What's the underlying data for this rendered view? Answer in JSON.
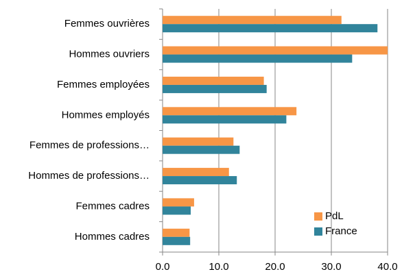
{
  "chart_data": {
    "type": "barh",
    "categories": [
      "Femmes ouvrières",
      "Hommes ouvriers",
      "Femmes employées",
      "Hommes employés",
      "Femmes de professions…",
      "Hommes de professions…",
      "Femmes cadres",
      "Hommes cadres"
    ],
    "series": [
      {
        "name": "PdL",
        "color": "#f79646",
        "values": [
          31.8,
          40.0,
          18.0,
          23.8,
          12.6,
          11.8,
          5.6,
          4.8
        ]
      },
      {
        "name": "France",
        "color": "#31849b",
        "values": [
          38.2,
          33.7,
          18.5,
          22.0,
          13.7,
          13.2,
          5.0,
          4.9
        ]
      }
    ],
    "xlim": [
      0,
      40
    ],
    "xticks": [
      {
        "value": 0,
        "label": "0.0"
      },
      {
        "value": 10,
        "label": "10.0"
      },
      {
        "value": 20,
        "label": "20.0"
      },
      {
        "value": 30,
        "label": "30.0"
      },
      {
        "value": 40,
        "label": "40.0"
      }
    ],
    "grid": true,
    "legend": "lower right"
  }
}
